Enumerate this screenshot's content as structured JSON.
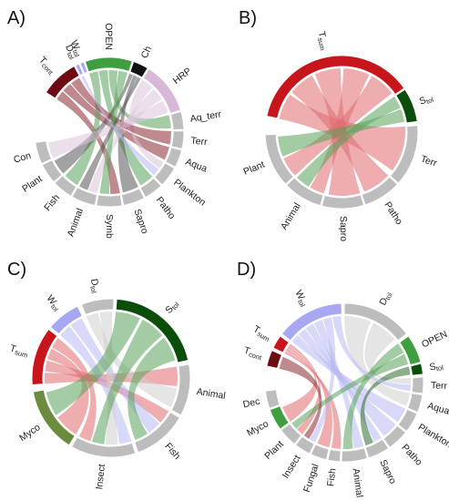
{
  "colors": {
    "red": "#c8151b",
    "pink": "#e08a8f",
    "green": "#3f9f3f",
    "dark_green": "#0b4d0b",
    "olive": "#6b8c3f",
    "grey": "#bdbdbd",
    "light_purple": "#d8b8d8",
    "lavender": "#a7a7f4",
    "dark_red": "#6e0b12",
    "black": "#111111"
  },
  "panels": [
    {
      "letter": "A)",
      "segments": [
        {
          "label": "T",
          "sub": "cont",
          "color": "dark_red"
        },
        {
          "label": "D",
          "sub": "tol",
          "color": "lavender"
        },
        {
          "label": "W",
          "sub": "tol",
          "color": "lavender"
        },
        {
          "label": "OPEN",
          "color": "green"
        },
        {
          "label": "Ch",
          "color": "black"
        },
        {
          "label": "HRP",
          "color": "light_purple"
        },
        {
          "label": "Aq_terr",
          "color": "grey"
        },
        {
          "label": "Terr",
          "color": "grey"
        },
        {
          "label": "Aqua",
          "color": "grey"
        },
        {
          "label": "Plankton",
          "color": "grey"
        },
        {
          "label": "Patho",
          "color": "grey"
        },
        {
          "label": "Sapro",
          "color": "grey"
        },
        {
          "label": "Symb",
          "color": "grey"
        },
        {
          "label": "Animal",
          "color": "grey"
        },
        {
          "label": "Fish",
          "color": "grey"
        },
        {
          "label": "Plant",
          "color": "grey"
        },
        {
          "label": "Con",
          "color": "grey"
        }
      ]
    },
    {
      "letter": "B)",
      "segments": [
        {
          "label": "T",
          "sub": "sum",
          "color": "red"
        },
        {
          "label": "S",
          "sub": "tol",
          "color": "dark_green"
        },
        {
          "label": "Terr",
          "color": "grey"
        },
        {
          "label": "Patho",
          "color": "grey"
        },
        {
          "label": "Sapro",
          "color": "grey"
        },
        {
          "label": "Animal",
          "color": "grey"
        },
        {
          "label": "Plant",
          "color": "grey"
        }
      ]
    },
    {
      "letter": "C)",
      "segments": [
        {
          "label": "T",
          "sub": "sum",
          "color": "red"
        },
        {
          "label": "W",
          "sub": "tol",
          "color": "lavender"
        },
        {
          "label": "D",
          "sub": "tol",
          "color": "grey"
        },
        {
          "label": "S",
          "sub": "tol",
          "color": "dark_green"
        },
        {
          "label": "Animal",
          "color": "grey"
        },
        {
          "label": "Fish",
          "color": "grey"
        },
        {
          "label": "Insect",
          "color": "grey"
        },
        {
          "label": "Myco",
          "color": "olive"
        }
      ]
    },
    {
      "letter": "D)",
      "segments": [
        {
          "label": "T",
          "sub": "cont",
          "color": "dark_red"
        },
        {
          "label": "T",
          "sub": "sum",
          "color": "red"
        },
        {
          "label": "W",
          "sub": "tol",
          "color": "lavender"
        },
        {
          "label": "D",
          "sub": "tol",
          "color": "grey"
        },
        {
          "label": "OPEN",
          "color": "green"
        },
        {
          "label": "S",
          "sub": "tol",
          "color": "dark_green"
        },
        {
          "label": "Terr",
          "color": "grey"
        },
        {
          "label": "Aqua",
          "color": "grey"
        },
        {
          "label": "Plankton",
          "color": "grey"
        },
        {
          "label": "Patho",
          "color": "grey"
        },
        {
          "label": "Sapro",
          "color": "grey"
        },
        {
          "label": "Animal",
          "color": "grey"
        },
        {
          "label": "Fish",
          "color": "grey"
        },
        {
          "label": "Fungal",
          "color": "grey"
        },
        {
          "label": "Insect",
          "color": "grey"
        },
        {
          "label": "Plant",
          "color": "grey"
        },
        {
          "label": "Myco",
          "color": "green"
        },
        {
          "label": "Dec",
          "color": "grey"
        }
      ]
    }
  ]
}
